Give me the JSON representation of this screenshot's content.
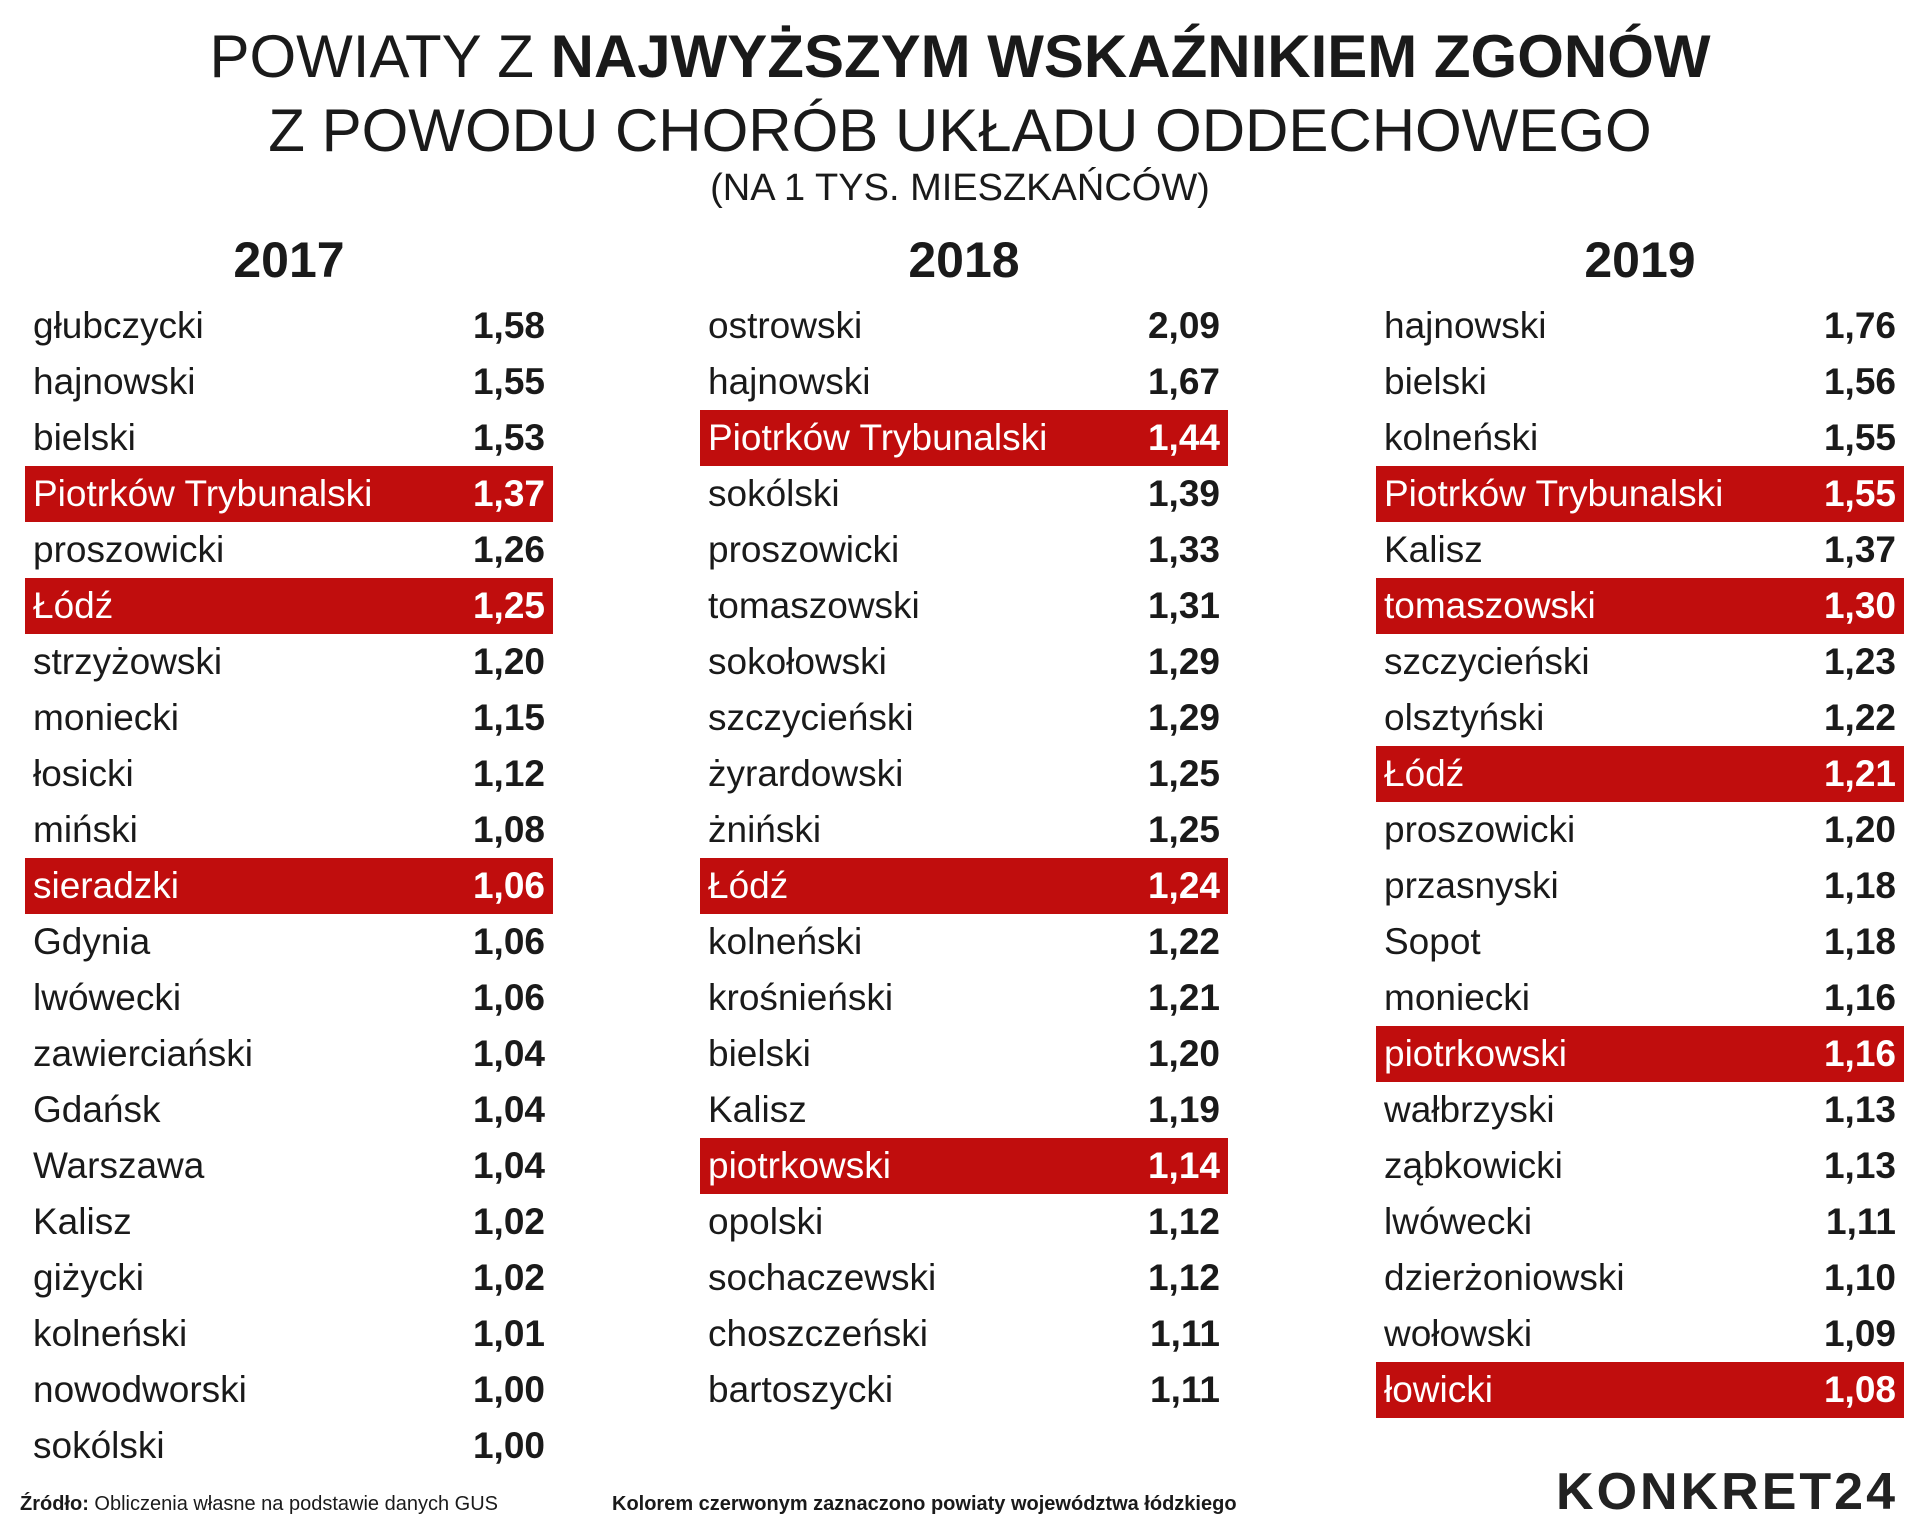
{
  "title": {
    "line1_regular": "POWIATY Z ",
    "line1_bold": "NAJWYŻSZYM WSKAŹNIKIEM ZGONÓW",
    "line2": "Z POWODU CHORÓB UKŁADU ODDECHOWEGO",
    "line3": "(NA 1 TYS. MIESZKAŃCÓW)"
  },
  "colors": {
    "highlight": "#c00d0d",
    "text": "#1a1a1a"
  },
  "chart_data": {
    "type": "table",
    "columns": [
      {
        "year": "2017",
        "rows": [
          {
            "name": "głubczycki",
            "value": "1,58",
            "highlight": false
          },
          {
            "name": "hajnowski",
            "value": "1,55",
            "highlight": false
          },
          {
            "name": "bielski",
            "value": "1,53",
            "highlight": false
          },
          {
            "name": "Piotrków Trybunalski",
            "value": "1,37",
            "highlight": true
          },
          {
            "name": "proszowicki",
            "value": "1,26",
            "highlight": false
          },
          {
            "name": "Łódź",
            "value": "1,25",
            "highlight": true
          },
          {
            "name": "strzyżowski",
            "value": "1,20",
            "highlight": false
          },
          {
            "name": "moniecki",
            "value": "1,15",
            "highlight": false
          },
          {
            "name": "łosicki",
            "value": "1,12",
            "highlight": false
          },
          {
            "name": "miński",
            "value": "1,08",
            "highlight": false
          },
          {
            "name": "sieradzki",
            "value": "1,06",
            "highlight": true
          },
          {
            "name": "Gdynia",
            "value": "1,06",
            "highlight": false
          },
          {
            "name": "lwówecki",
            "value": "1,06",
            "highlight": false
          },
          {
            "name": "zawierciański",
            "value": "1,04",
            "highlight": false
          },
          {
            "name": "Gdańsk",
            "value": "1,04",
            "highlight": false
          },
          {
            "name": "Warszawa",
            "value": "1,04",
            "highlight": false
          },
          {
            "name": "Kalisz",
            "value": "1,02",
            "highlight": false
          },
          {
            "name": "giżycki",
            "value": "1,02",
            "highlight": false
          },
          {
            "name": "kolneński",
            "value": "1,01",
            "highlight": false
          },
          {
            "name": "nowodworski",
            "value": "1,00",
            "highlight": false
          },
          {
            "name": "sokólski",
            "value": "1,00",
            "highlight": false
          }
        ]
      },
      {
        "year": "2018",
        "rows": [
          {
            "name": "ostrowski",
            "value": "2,09",
            "highlight": false
          },
          {
            "name": "hajnowski",
            "value": "1,67",
            "highlight": false
          },
          {
            "name": "Piotrków Trybunalski",
            "value": "1,44",
            "highlight": true
          },
          {
            "name": "sokólski",
            "value": "1,39",
            "highlight": false
          },
          {
            "name": "proszowicki",
            "value": "1,33",
            "highlight": false
          },
          {
            "name": "tomaszowski",
            "value": "1,31",
            "highlight": false
          },
          {
            "name": "sokołowski",
            "value": "1,29",
            "highlight": false
          },
          {
            "name": "szczycieński",
            "value": "1,29",
            "highlight": false
          },
          {
            "name": "żyrardowski",
            "value": "1,25",
            "highlight": false
          },
          {
            "name": "żniński",
            "value": "1,25",
            "highlight": false
          },
          {
            "name": "Łódź",
            "value": "1,24",
            "highlight": true
          },
          {
            "name": "kolneński",
            "value": "1,22",
            "highlight": false
          },
          {
            "name": "krośnieński",
            "value": "1,21",
            "highlight": false
          },
          {
            "name": "bielski",
            "value": "1,20",
            "highlight": false
          },
          {
            "name": "Kalisz",
            "value": "1,19",
            "highlight": false
          },
          {
            "name": "piotrkowski",
            "value": "1,14",
            "highlight": true
          },
          {
            "name": "opolski",
            "value": "1,12",
            "highlight": false
          },
          {
            "name": "sochaczewski",
            "value": "1,12",
            "highlight": false
          },
          {
            "name": "choszczeński",
            "value": "1,11",
            "highlight": false
          },
          {
            "name": "bartoszycki",
            "value": "1,11",
            "highlight": false
          }
        ]
      },
      {
        "year": "2019",
        "rows": [
          {
            "name": "hajnowski",
            "value": "1,76",
            "highlight": false
          },
          {
            "name": "bielski",
            "value": "1,56",
            "highlight": false
          },
          {
            "name": "kolneński",
            "value": "1,55",
            "highlight": false
          },
          {
            "name": "Piotrków Trybunalski",
            "value": "1,55",
            "highlight": true
          },
          {
            "name": "Kalisz",
            "value": "1,37",
            "highlight": false
          },
          {
            "name": "tomaszowski",
            "value": "1,30",
            "highlight": true
          },
          {
            "name": "szczycieński",
            "value": "1,23",
            "highlight": false
          },
          {
            "name": "olsztyński",
            "value": "1,22",
            "highlight": false
          },
          {
            "name": "Łódź",
            "value": "1,21",
            "highlight": true
          },
          {
            "name": "proszowicki",
            "value": "1,20",
            "highlight": false
          },
          {
            "name": "przasnyski",
            "value": "1,18",
            "highlight": false
          },
          {
            "name": "Sopot",
            "value": "1,18",
            "highlight": false
          },
          {
            "name": "moniecki",
            "value": "1,16",
            "highlight": false
          },
          {
            "name": "piotrkowski",
            "value": "1,16",
            "highlight": true
          },
          {
            "name": "wałbrzyski",
            "value": "1,13",
            "highlight": false
          },
          {
            "name": "ząbkowicki",
            "value": "1,13",
            "highlight": false
          },
          {
            "name": "lwówecki",
            "value": "1,11",
            "highlight": false
          },
          {
            "name": "dzierżoniowski",
            "value": "1,10",
            "highlight": false
          },
          {
            "name": "wołowski",
            "value": "1,09",
            "highlight": false
          },
          {
            "name": "łowicki",
            "value": "1,08",
            "highlight": true
          }
        ]
      }
    ]
  },
  "footer": {
    "source_label": "Źródło:",
    "source_text": " Obliczenia własne na podstawie danych GUS",
    "note": "Kolorem czerwonym zaznaczono powiaty województwa łódzkiego"
  },
  "logo": {
    "text": "KONKRET24"
  }
}
